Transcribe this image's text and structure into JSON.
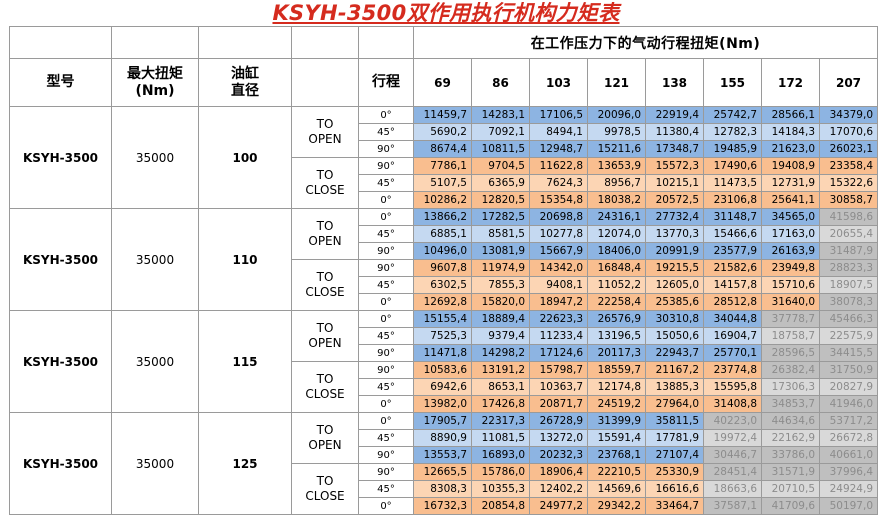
{
  "title": "KSYH-3500双作用执行机构力矩表",
  "header": {
    "pressure_caption": "在工作压力下的气动行程扭矩(Nm)",
    "model_label": "型号",
    "max_torque_label_1": "最大扭矩",
    "max_torque_label_2": "(Nm)",
    "cylinder_label_1": "油缸",
    "cylinder_label_2": "直径",
    "stroke_label": "行程",
    "pressures": [
      "69",
      "86",
      "103",
      "121",
      "138",
      "155",
      "172",
      "207"
    ]
  },
  "colors": {
    "b": "#8db4e2",
    "lb": "#c5d9f1",
    "o": "#f9be8f",
    "lo": "#fcd5b4",
    "g": "#bfbfbf",
    "lg": "#d9d9d9",
    "title": "#d52b1e"
  },
  "groups": [
    {
      "model": "KSYH-3500",
      "max_torque": "35000",
      "cylinder": "100",
      "rows": [
        {
          "dir1": "TO",
          "dir2": "OPEN",
          "angle": "0°",
          "values": [
            "11459,7",
            "14283,1",
            "17106,5",
            "20096,0",
            "22919,4",
            "25742,7",
            "28566,1",
            "34379,0"
          ],
          "shades": [
            "b",
            "b",
            "b",
            "b",
            "b",
            "b",
            "b",
            "b"
          ]
        },
        {
          "angle": "45°",
          "values": [
            "5690,2",
            "7092,1",
            "8494,1",
            "9978,5",
            "11380,4",
            "12782,3",
            "14184,3",
            "17070,6"
          ],
          "shades": [
            "lb",
            "lb",
            "lb",
            "lb",
            "lb",
            "lb",
            "lb",
            "lb"
          ]
        },
        {
          "angle": "90°",
          "values": [
            "8674,4",
            "10811,5",
            "12948,7",
            "15211,6",
            "17348,7",
            "19485,9",
            "21623,0",
            "26023,1"
          ],
          "shades": [
            "b",
            "b",
            "b",
            "b",
            "b",
            "b",
            "b",
            "b"
          ]
        },
        {
          "dir1": "TO",
          "dir2": "CLOSE",
          "angle": "90°",
          "values": [
            "7786,1",
            "9704,5",
            "11622,8",
            "13653,9",
            "15572,3",
            "17490,6",
            "19408,9",
            "23358,4"
          ],
          "shades": [
            "o",
            "o",
            "o",
            "o",
            "o",
            "o",
            "o",
            "o"
          ]
        },
        {
          "angle": "45°",
          "values": [
            "5107,5",
            "6365,9",
            "7624,3",
            "8956,7",
            "10215,1",
            "11473,5",
            "12731,9",
            "15322,6"
          ],
          "shades": [
            "lo",
            "lo",
            "lo",
            "lo",
            "lo",
            "lo",
            "lo",
            "lo"
          ]
        },
        {
          "angle": "0°",
          "values": [
            "10286,2",
            "12820,5",
            "15354,8",
            "18038,2",
            "20572,5",
            "23106,8",
            "25641,1",
            "30858,7"
          ],
          "shades": [
            "o",
            "o",
            "o",
            "o",
            "o",
            "o",
            "o",
            "o"
          ]
        }
      ]
    },
    {
      "model": "KSYH-3500",
      "max_torque": "35000",
      "cylinder": "110",
      "rows": [
        {
          "dir1": "TO",
          "dir2": "OPEN",
          "angle": "0°",
          "values": [
            "13866,2",
            "17282,5",
            "20698,8",
            "24316,1",
            "27732,4",
            "31148,7",
            "34565,0",
            "41598,6"
          ],
          "shades": [
            "b",
            "b",
            "b",
            "b",
            "b",
            "b",
            "b",
            "g"
          ]
        },
        {
          "angle": "45°",
          "values": [
            "6885,1",
            "8581,5",
            "10277,8",
            "12074,0",
            "13770,3",
            "15466,6",
            "17163,0",
            "20655,4"
          ],
          "shades": [
            "lb",
            "lb",
            "lb",
            "lb",
            "lb",
            "lb",
            "lb",
            "lg"
          ]
        },
        {
          "angle": "90°",
          "values": [
            "10496,0",
            "13081,9",
            "15667,9",
            "18406,0",
            "20991,9",
            "23577,9",
            "26163,9",
            "31487,9"
          ],
          "shades": [
            "b",
            "b",
            "b",
            "b",
            "b",
            "b",
            "b",
            "g"
          ]
        },
        {
          "dir1": "TO",
          "dir2": "CLOSE",
          "angle": "90°",
          "values": [
            "9607,8",
            "11974,9",
            "14342,0",
            "16848,4",
            "19215,5",
            "21582,6",
            "23949,8",
            "28823,3"
          ],
          "shades": [
            "o",
            "o",
            "o",
            "o",
            "o",
            "o",
            "o",
            "g"
          ]
        },
        {
          "angle": "45°",
          "values": [
            "6302,5",
            "7855,3",
            "9408,1",
            "11052,2",
            "12605,0",
            "14157,8",
            "15710,6",
            "18907,5"
          ],
          "shades": [
            "lo",
            "lo",
            "lo",
            "lo",
            "lo",
            "lo",
            "lo",
            "lg"
          ]
        },
        {
          "angle": "0°",
          "values": [
            "12692,8",
            "15820,0",
            "18947,2",
            "22258,4",
            "25385,6",
            "28512,8",
            "31640,0",
            "38078,3"
          ],
          "shades": [
            "o",
            "o",
            "o",
            "o",
            "o",
            "o",
            "o",
            "g"
          ]
        }
      ]
    },
    {
      "model": "KSYH-3500",
      "max_torque": "35000",
      "cylinder": "115",
      "rows": [
        {
          "dir1": "TO",
          "dir2": "OPEN",
          "angle": "0°",
          "values": [
            "15155,4",
            "18889,4",
            "22623,3",
            "26576,9",
            "30310,8",
            "34044,8",
            "37778,7",
            "45466,3"
          ],
          "shades": [
            "b",
            "b",
            "b",
            "b",
            "b",
            "b",
            "g",
            "g"
          ]
        },
        {
          "angle": "45°",
          "values": [
            "7525,3",
            "9379,4",
            "11233,4",
            "13196,5",
            "15050,6",
            "16904,7",
            "18758,7",
            "22575,9"
          ],
          "shades": [
            "lb",
            "lb",
            "lb",
            "lb",
            "lb",
            "lb",
            "lg",
            "lg"
          ]
        },
        {
          "angle": "90°",
          "values": [
            "11471,8",
            "14298,2",
            "17124,6",
            "20117,3",
            "22943,7",
            "25770,1",
            "28596,5",
            "34415,5"
          ],
          "shades": [
            "b",
            "b",
            "b",
            "b",
            "b",
            "b",
            "g",
            "g"
          ]
        },
        {
          "dir1": "TO",
          "dir2": "CLOSE",
          "angle": "90°",
          "values": [
            "10583,6",
            "13191,2",
            "15798,7",
            "18559,7",
            "21167,2",
            "23774,8",
            "26382,4",
            "31750,9"
          ],
          "shades": [
            "o",
            "o",
            "o",
            "o",
            "o",
            "o",
            "g",
            "g"
          ]
        },
        {
          "angle": "45°",
          "values": [
            "6942,6",
            "8653,1",
            "10363,7",
            "12174,8",
            "13885,3",
            "15595,8",
            "17306,3",
            "20827,9"
          ],
          "shades": [
            "lo",
            "lo",
            "lo",
            "lo",
            "lo",
            "lo",
            "lg",
            "lg"
          ]
        },
        {
          "angle": "0°",
          "values": [
            "13982,0",
            "17426,8",
            "20871,7",
            "24519,2",
            "27964,0",
            "31408,8",
            "34853,7",
            "41946,0"
          ],
          "shades": [
            "o",
            "o",
            "o",
            "o",
            "o",
            "o",
            "g",
            "g"
          ]
        }
      ]
    },
    {
      "model": "KSYH-3500",
      "max_torque": "35000",
      "cylinder": "125",
      "rows": [
        {
          "dir1": "TO",
          "dir2": "OPEN",
          "angle": "0°",
          "values": [
            "17905,7",
            "22317,3",
            "26728,9",
            "31399,9",
            "35811,5",
            "40223,0",
            "44634,6",
            "53717,2"
          ],
          "shades": [
            "b",
            "b",
            "b",
            "b",
            "b",
            "g",
            "g",
            "g"
          ]
        },
        {
          "angle": "45°",
          "values": [
            "8890,9",
            "11081,5",
            "13272,0",
            "15591,4",
            "17781,9",
            "19972,4",
            "22162,9",
            "26672,8"
          ],
          "shades": [
            "lb",
            "lb",
            "lb",
            "lb",
            "lb",
            "lg",
            "lg",
            "lg"
          ]
        },
        {
          "angle": "90°",
          "values": [
            "13553,7",
            "16893,0",
            "20232,3",
            "23768,1",
            "27107,4",
            "30446,7",
            "33786,0",
            "40661,0"
          ],
          "shades": [
            "b",
            "b",
            "b",
            "b",
            "b",
            "g",
            "g",
            "g"
          ]
        },
        {
          "dir1": "TO",
          "dir2": "CLOSE",
          "angle": "90°",
          "values": [
            "12665,5",
            "15786,0",
            "18906,4",
            "22210,5",
            "25330,9",
            "28451,4",
            "31571,9",
            "37996,4"
          ],
          "shades": [
            "o",
            "o",
            "o",
            "o",
            "o",
            "g",
            "g",
            "g"
          ]
        },
        {
          "angle": "45°",
          "values": [
            "8308,3",
            "10355,3",
            "12402,2",
            "14569,6",
            "16616,6",
            "18663,6",
            "20710,5",
            "24924,9"
          ],
          "shades": [
            "lo",
            "lo",
            "lo",
            "lo",
            "lo",
            "lg",
            "lg",
            "lg"
          ]
        },
        {
          "angle": "0°",
          "values": [
            "16732,3",
            "20854,8",
            "24977,2",
            "29342,2",
            "33464,7",
            "37587,1",
            "41709,6",
            "50197,0"
          ],
          "shades": [
            "o",
            "o",
            "o",
            "o",
            "o",
            "g",
            "g",
            "g"
          ]
        }
      ]
    }
  ]
}
